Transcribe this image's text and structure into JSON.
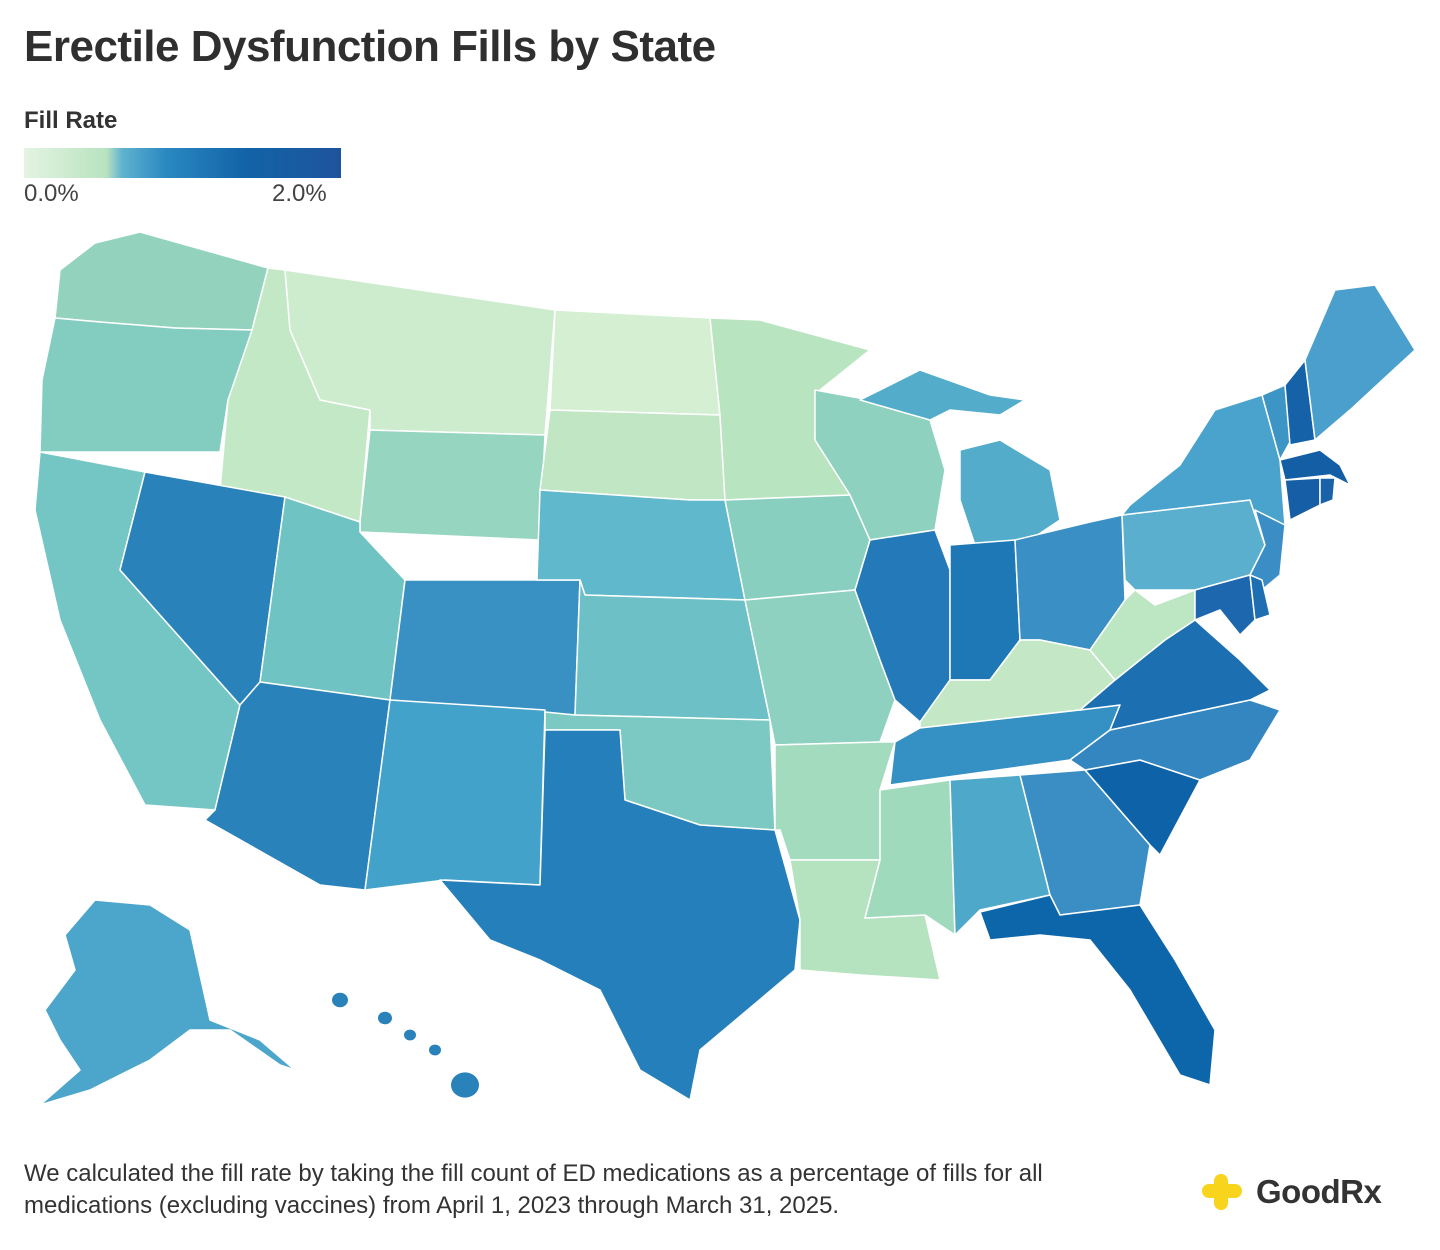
{
  "title": "Erectile Dysfunction Fills by State",
  "legend": {
    "title": "Fill Rate",
    "min_label": "0.0%",
    "max_label": "2.0%",
    "range": [
      0.0,
      2.0
    ],
    "scale_colors": [
      "#e4f4e2",
      "#b8e3c0",
      "#5fb2cf",
      "#2a88c0",
      "#1263a8",
      "#1f549c"
    ]
  },
  "map": {
    "states": [
      {
        "id": "WA",
        "color": "#93d3bd"
      },
      {
        "id": "OR",
        "color": "#83cdc0"
      },
      {
        "id": "CA",
        "color": "#74c6c5"
      },
      {
        "id": "ID",
        "color": "#c3e8c6"
      },
      {
        "id": "NV",
        "color": "#2a82bb"
      },
      {
        "id": "MT",
        "color": "#cdecce"
      },
      {
        "id": "WY",
        "color": "#96d5bf"
      },
      {
        "id": "UT",
        "color": "#6fc3c2"
      },
      {
        "id": "CO",
        "color": "#3890c3"
      },
      {
        "id": "AZ",
        "color": "#2a82bb"
      },
      {
        "id": "NM",
        "color": "#43a2c9"
      },
      {
        "id": "ND",
        "color": "#d5efd3"
      },
      {
        "id": "SD",
        "color": "#c0e6c4"
      },
      {
        "id": "NE",
        "color": "#5fb8cb"
      },
      {
        "id": "KS",
        "color": "#6cc0c6"
      },
      {
        "id": "OK",
        "color": "#7bc9c2"
      },
      {
        "id": "TX",
        "color": "#247fba"
      },
      {
        "id": "MN",
        "color": "#b9e4c0"
      },
      {
        "id": "IA",
        "color": "#88cfbf"
      },
      {
        "id": "MO",
        "color": "#8fd1c0"
      },
      {
        "id": "AR",
        "color": "#a2dbbe"
      },
      {
        "id": "LA",
        "color": "#b5e2bf"
      },
      {
        "id": "WI",
        "color": "#8ed1bf"
      },
      {
        "id": "IL",
        "color": "#2479b8"
      },
      {
        "id": "MI",
        "color": "#52acca"
      },
      {
        "id": "IN",
        "color": "#1f78b6"
      },
      {
        "id": "OH",
        "color": "#3a8fc5"
      },
      {
        "id": "KY",
        "color": "#c4e8c6"
      },
      {
        "id": "TN",
        "color": "#3591c4"
      },
      {
        "id": "MS",
        "color": "#a0dabd"
      },
      {
        "id": "AL",
        "color": "#4ea8ca"
      },
      {
        "id": "GA",
        "color": "#3a8ec3"
      },
      {
        "id": "FL",
        "color": "#0e66aa"
      },
      {
        "id": "SC",
        "color": "#0d62a8"
      },
      {
        "id": "NC",
        "color": "#3386c0"
      },
      {
        "id": "VA",
        "color": "#1c6fb1"
      },
      {
        "id": "WV",
        "color": "#bde6c3"
      },
      {
        "id": "PA",
        "color": "#5aafcf"
      },
      {
        "id": "NY",
        "color": "#4aa3cc"
      },
      {
        "id": "NJ",
        "color": "#3a8ec5"
      },
      {
        "id": "MD",
        "color": "#1c67ad"
      },
      {
        "id": "DE",
        "color": "#1d6fb2"
      },
      {
        "id": "VT",
        "color": "#3d95c6"
      },
      {
        "id": "NH",
        "color": "#1662a8"
      },
      {
        "id": "ME",
        "color": "#4a9fcc"
      },
      {
        "id": "MA",
        "color": "#135ea5"
      },
      {
        "id": "CT",
        "color": "#165fa6"
      },
      {
        "id": "RI",
        "color": "#1a62a8"
      },
      {
        "id": "AK",
        "color": "#4ca5ca"
      },
      {
        "id": "HI",
        "color": "#2a82bb"
      }
    ]
  },
  "footnote": "We calculated the fill rate by taking the fill count of ED medications as a percentage of fills for all medications (excluding vaccines) from April 1, 2023 through March 31, 2025.",
  "brand": {
    "name": "GoodRx",
    "logo_color": "#f8d41c"
  }
}
